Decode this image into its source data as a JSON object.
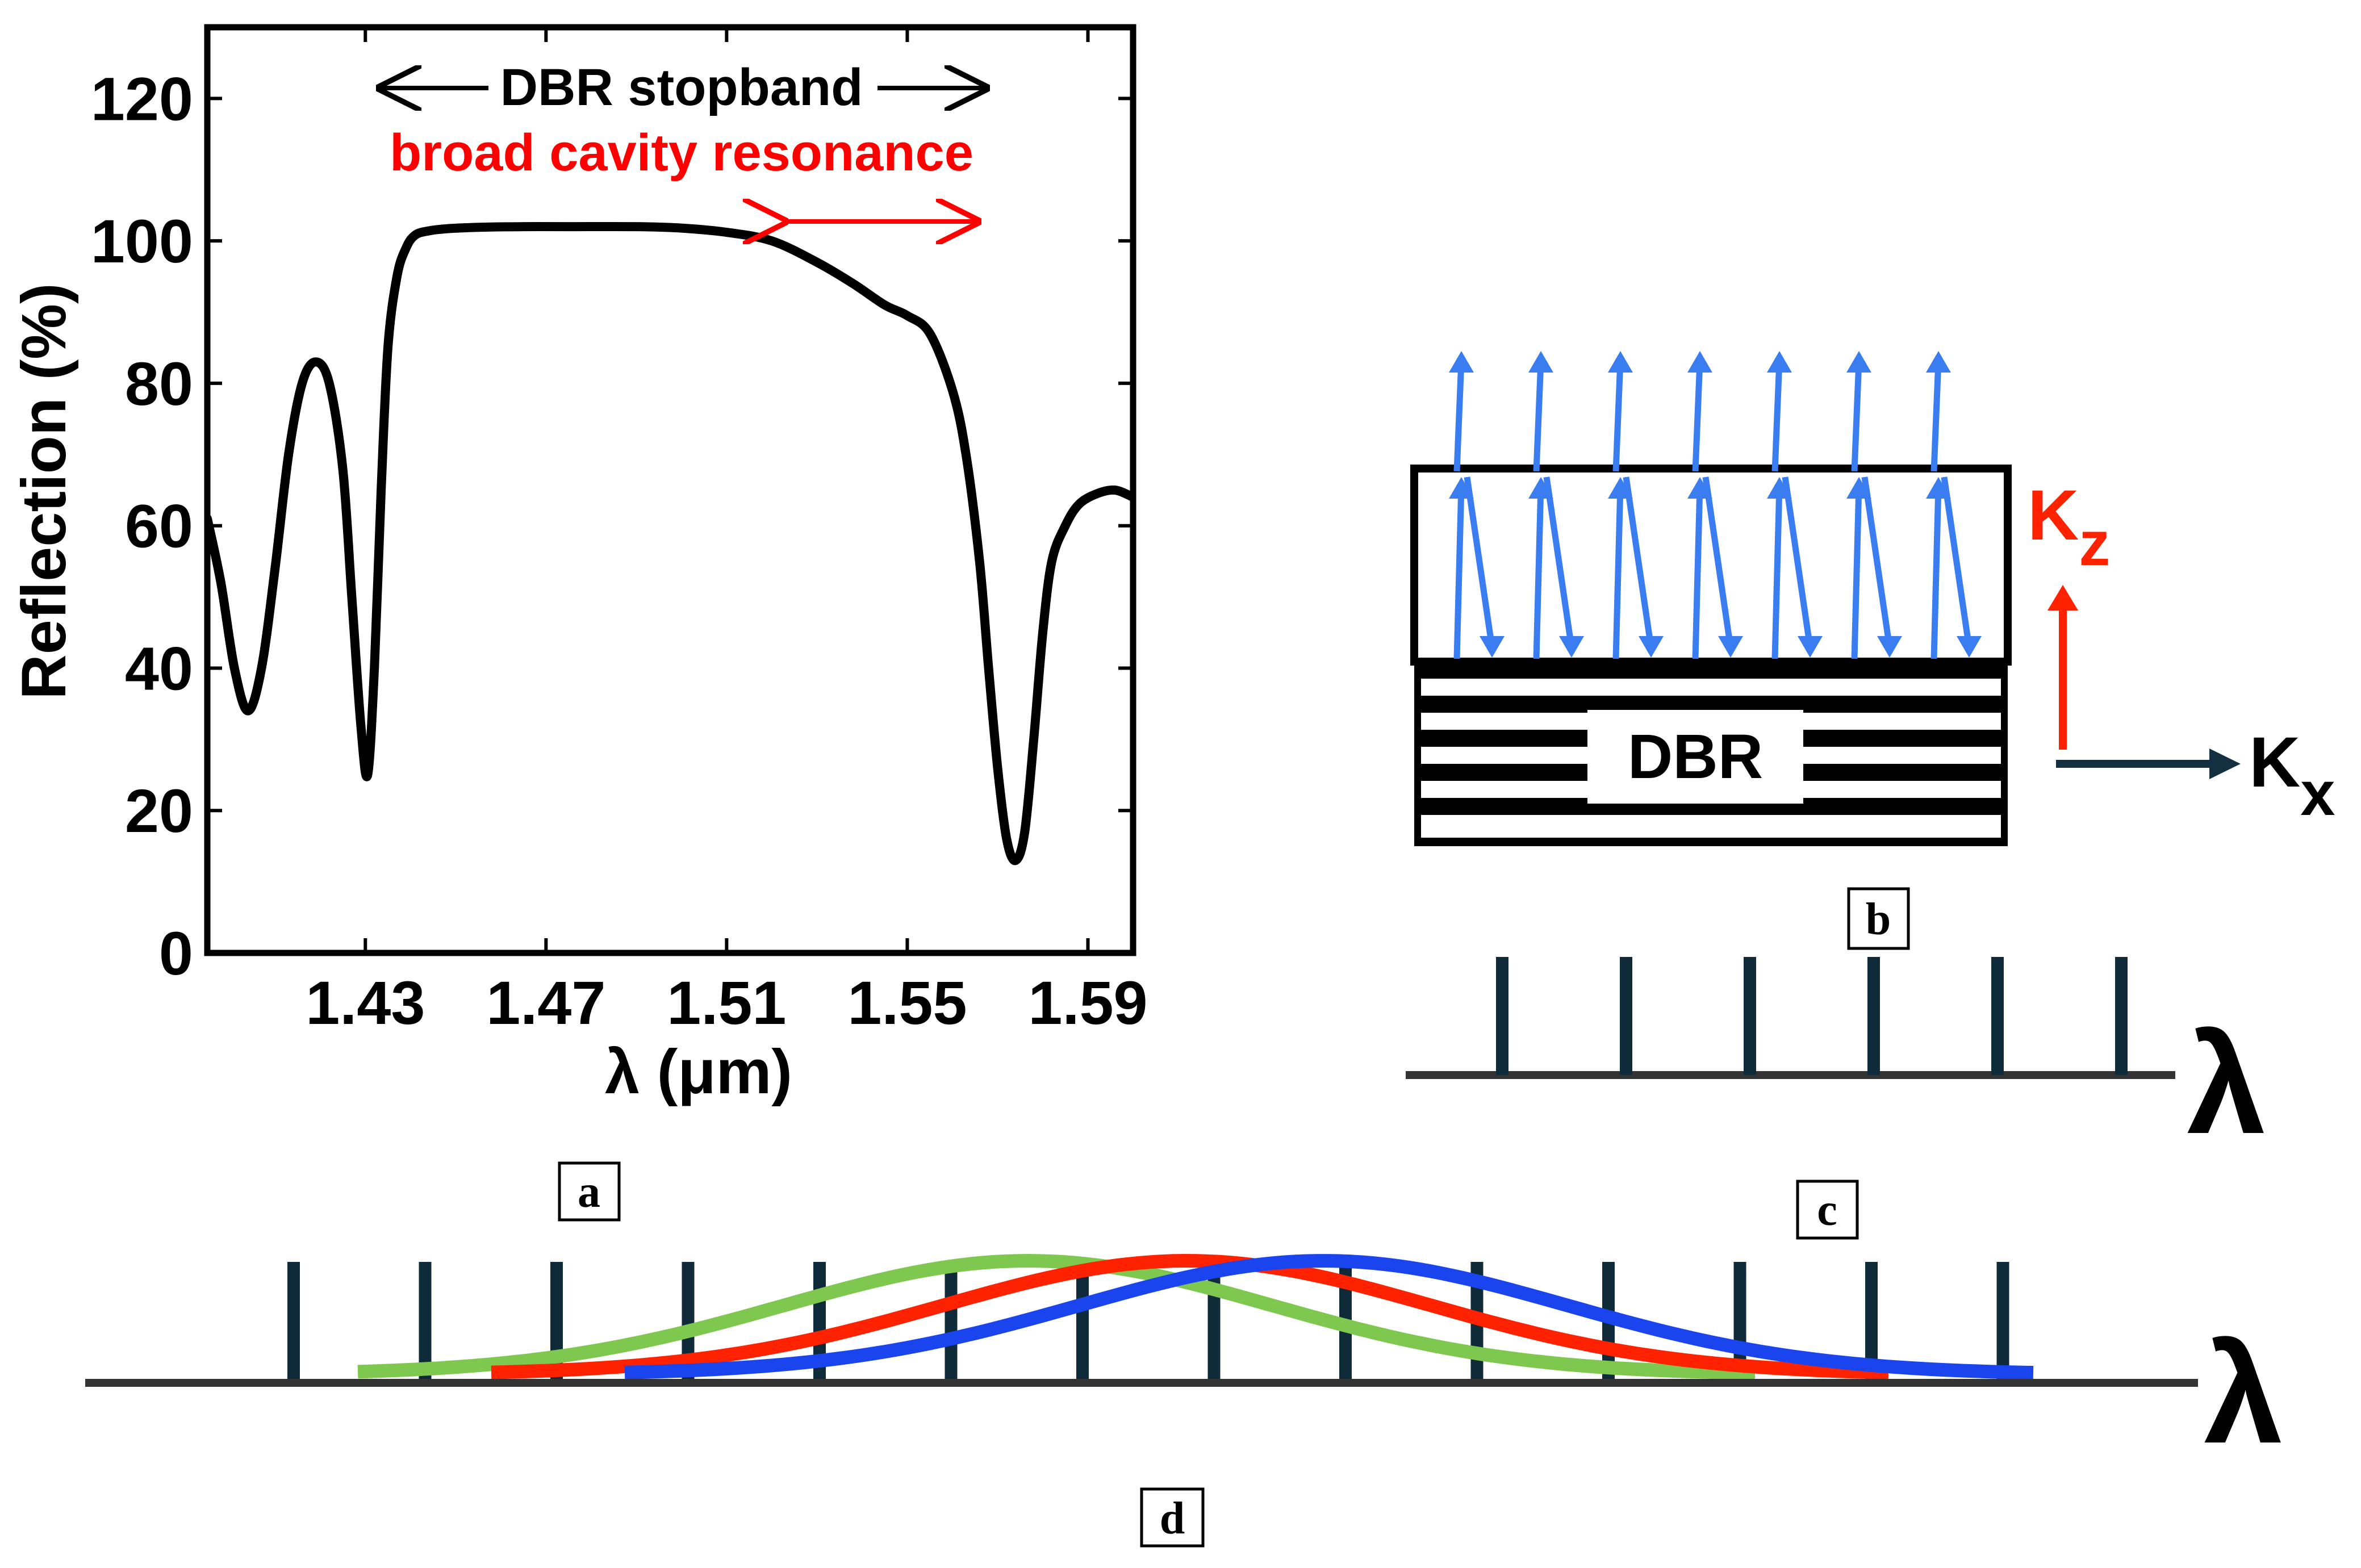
{
  "chart_data": {
    "type": "line",
    "title": "",
    "xlabel": "λ (μm)",
    "ylabel": "Reflection (%)",
    "xlim": [
      1.395,
      1.6
    ],
    "ylim": [
      0,
      130
    ],
    "x_ticks": [
      1.43,
      1.47,
      1.51,
      1.55,
      1.59
    ],
    "x_tick_labels": [
      "1.43",
      "1.47",
      "1.51",
      "1.55",
      "1.59"
    ],
    "y_ticks": [
      0,
      20,
      40,
      60,
      80,
      100,
      120
    ],
    "y_tick_labels": [
      "0",
      "20",
      "40",
      "60",
      "80",
      "100",
      "120"
    ],
    "series": [
      {
        "name": "Reflection",
        "color": "#000000",
        "x": [
          1.395,
          1.398,
          1.401,
          1.404,
          1.407,
          1.41,
          1.413,
          1.416,
          1.419,
          1.422,
          1.425,
          1.427,
          1.429,
          1.4305,
          1.432,
          1.4335,
          1.435,
          1.437,
          1.439,
          1.441,
          1.444,
          1.448,
          1.455,
          1.465,
          1.475,
          1.49,
          1.5,
          1.51,
          1.52,
          1.53,
          1.538,
          1.545,
          1.55,
          1.555,
          1.56,
          1.563,
          1.566,
          1.568,
          1.57,
          1.572,
          1.574,
          1.576,
          1.578,
          1.58,
          1.582,
          1.585,
          1.588,
          1.592,
          1.596,
          1.6
        ],
        "y": [
          61,
          52,
          40,
          34,
          40,
          54,
          70,
          80,
          83,
          80,
          68,
          50,
          32,
          25,
          40,
          65,
          85,
          95,
          99,
          100.8,
          101.4,
          101.7,
          101.9,
          102,
          102,
          102,
          101.8,
          101.2,
          100,
          97,
          94,
          91,
          89.5,
          87,
          79,
          70,
          55,
          40,
          26,
          16,
          13,
          17,
          30,
          45,
          55,
          60,
          63,
          64.5,
          65,
          64
        ]
      }
    ],
    "annotations": [
      {
        "text": "DBR stopband",
        "x_start": 1.43,
        "x_end": 1.57,
        "y": 122,
        "color": "#000000"
      },
      {
        "text": "broad cavity resonance",
        "y": 112,
        "color": "#ff0000"
      },
      {
        "text": "",
        "x_start": 1.52,
        "x_end": 1.566,
        "y": 104,
        "color": "#ff0000"
      }
    ]
  },
  "panel_labels": {
    "a": "a",
    "b": "b",
    "c": "c",
    "d": "d"
  },
  "panel_b": {
    "dbr_label": "DBR",
    "kz_label": "K",
    "kz_subscript": "z",
    "kx_label": "K",
    "kx_subscript": "x",
    "wave_color": "#3a7df0",
    "kz_color": "#ff2200",
    "kx_color": "#12303f"
  },
  "panel_c": {
    "axis_symbol": "λ",
    "num_lines": 6
  },
  "panel_d": {
    "axis_symbol": "λ",
    "num_lines": 14,
    "curves": [
      {
        "name": "green",
        "color": "#7fc850"
      },
      {
        "name": "red",
        "color": "#ff2200"
      },
      {
        "name": "blue",
        "color": "#1a44ee"
      }
    ]
  }
}
